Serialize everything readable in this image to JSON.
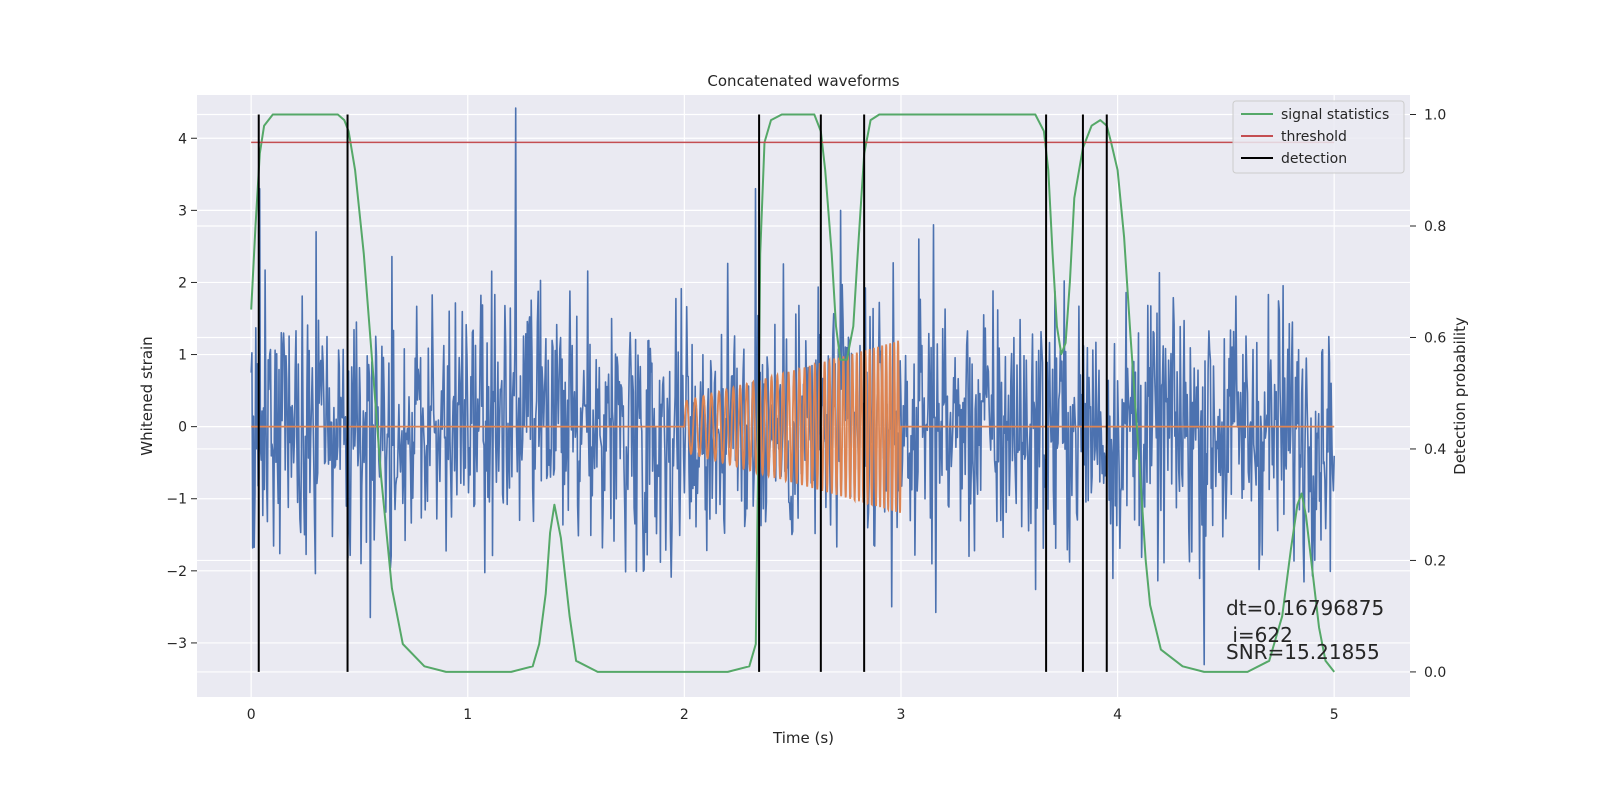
{
  "chart_data": {
    "type": "line",
    "title": "Concatenated waveforms",
    "xlabel": "Time (s)",
    "ylabel": "Whitened strain",
    "y2label": "Detection probability",
    "xlim": [
      -0.25,
      5.35
    ],
    "ylim": [
      -3.75,
      4.6
    ],
    "y2lim": [
      -0.045,
      1.035
    ],
    "x_ticks": [
      0,
      1,
      2,
      3,
      4,
      5
    ],
    "y_ticks": [
      -3,
      -2,
      -1,
      0,
      1,
      2,
      3,
      4
    ],
    "y2_ticks": [
      0.0,
      0.2,
      0.4,
      0.6,
      0.8,
      1.0
    ],
    "x_tick_labels": [
      "0",
      "1",
      "2",
      "3",
      "4",
      "5"
    ],
    "y_tick_labels": [
      "−3",
      "−2",
      "−1",
      "0",
      "1",
      "2",
      "3",
      "4"
    ],
    "y2_tick_labels": [
      "0.0",
      "0.2",
      "0.4",
      "0.6",
      "0.8",
      "1.0"
    ],
    "grid": true,
    "legend_position": "top-right",
    "colors": {
      "strain": "#4c72b0",
      "injected_signal": "#dd8452",
      "signal_statistics": "#55a868",
      "threshold": "#c44e52",
      "detection": "#000000",
      "plot_background": "#eaeaf2",
      "grid": "#ffffff"
    },
    "series": [
      {
        "key": "strain",
        "axis": "left",
        "style": "noise",
        "x_range": [
          0,
          5
        ],
        "spread": 0.9,
        "envelope_max": 2.9,
        "spikes": [
          [
            1.22,
            4.42
          ],
          [
            0.04,
            3.3
          ],
          [
            2.33,
            3.3
          ],
          [
            4.4,
            -3.3
          ],
          [
            3.15,
            2.8
          ],
          [
            2.72,
            3.0
          ]
        ]
      },
      {
        "key": "injected_signal",
        "axis": "left",
        "style": "chirp",
        "x_range": [
          0,
          5
        ],
        "chirp_start": 2.0,
        "chirp_end": 3.0,
        "amp_start": 0.35,
        "amp_end": 1.2,
        "cycles": 40
      },
      {
        "name": "signal statistics",
        "key": "signal_statistics",
        "axis": "right",
        "style": "line",
        "x": [
          0.0,
          0.02,
          0.04,
          0.06,
          0.1,
          0.15,
          0.2,
          0.3,
          0.4,
          0.43,
          0.45,
          0.48,
          0.52,
          0.56,
          0.6,
          0.65,
          0.7,
          0.8,
          0.9,
          1.0,
          1.1,
          1.2,
          1.3,
          1.33,
          1.36,
          1.38,
          1.4,
          1.43,
          1.47,
          1.5,
          1.6,
          1.8,
          2.0,
          2.2,
          2.3,
          2.33,
          2.34,
          2.35,
          2.37,
          2.4,
          2.45,
          2.5,
          2.6,
          2.63,
          2.65,
          2.68,
          2.7,
          2.72,
          2.75,
          2.78,
          2.8,
          2.83,
          2.86,
          2.9,
          3.0,
          3.2,
          3.5,
          3.62,
          3.66,
          3.68,
          3.7,
          3.72,
          3.74,
          3.76,
          3.78,
          3.8,
          3.84,
          3.88,
          3.92,
          3.95,
          3.97,
          4.0,
          4.03,
          4.06,
          4.1,
          4.13,
          4.15,
          4.2,
          4.3,
          4.4,
          4.6,
          4.7,
          4.76,
          4.8,
          4.83,
          4.85,
          4.87,
          4.9,
          4.93,
          4.96,
          5.0
        ],
        "values": [
          0.65,
          0.8,
          0.93,
          0.98,
          1.0,
          1.0,
          1.0,
          1.0,
          1.0,
          0.99,
          0.97,
          0.9,
          0.75,
          0.55,
          0.35,
          0.15,
          0.05,
          0.01,
          0.0,
          0.0,
          0.0,
          0.0,
          0.01,
          0.05,
          0.14,
          0.25,
          0.3,
          0.24,
          0.1,
          0.02,
          0.0,
          0.0,
          0.0,
          0.0,
          0.01,
          0.05,
          0.35,
          0.75,
          0.95,
          0.99,
          1.0,
          1.0,
          1.0,
          0.97,
          0.9,
          0.75,
          0.62,
          0.56,
          0.56,
          0.62,
          0.75,
          0.93,
          0.99,
          1.0,
          1.0,
          1.0,
          1.0,
          1.0,
          0.97,
          0.9,
          0.75,
          0.62,
          0.57,
          0.59,
          0.7,
          0.85,
          0.94,
          0.98,
          0.99,
          0.98,
          0.95,
          0.9,
          0.78,
          0.6,
          0.38,
          0.2,
          0.12,
          0.04,
          0.01,
          0.0,
          0.0,
          0.02,
          0.1,
          0.22,
          0.3,
          0.32,
          0.28,
          0.18,
          0.08,
          0.02,
          0.0
        ]
      },
      {
        "name": "threshold",
        "key": "threshold",
        "axis": "right",
        "style": "hline",
        "value": 0.95,
        "x_range": [
          0,
          5
        ]
      },
      {
        "name": "detection",
        "key": "detection",
        "axis": "right",
        "style": "vlines",
        "x": [
          0.035,
          0.445,
          2.345,
          2.63,
          2.83,
          3.67,
          3.84,
          3.95
        ],
        "y_range": [
          0.0,
          1.0
        ]
      }
    ],
    "annotation": {
      "lines": [
        "dt=0.16796875",
        " i=622",
        "SNR=15.21855"
      ]
    }
  }
}
